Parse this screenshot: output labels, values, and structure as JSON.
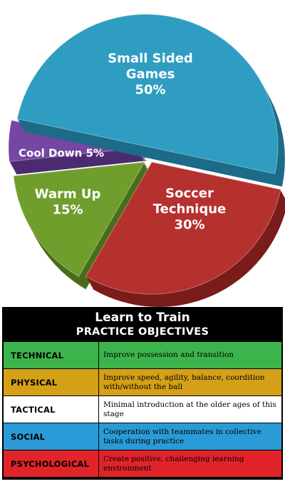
{
  "chart_data": {
    "type": "pie",
    "slices": [
      {
        "label_lines": [
          "Small Sided",
          "Games",
          "50%"
        ],
        "value": 50,
        "color": "#2f9dc1",
        "side": "#1c6b88"
      },
      {
        "label_lines": [
          "Soccer",
          "Technique",
          "30%"
        ],
        "value": 30,
        "color": "#b5312e",
        "side": "#7a1c1a"
      },
      {
        "label_lines": [
          "Warm Up",
          "15%"
        ],
        "value": 15,
        "color": "#6f9e2c",
        "side": "#496d1a"
      },
      {
        "label_lines": [
          "Cool Down 5%"
        ],
        "value": 5,
        "color": "#7447a2",
        "side": "#4c2a70"
      }
    ]
  },
  "table": {
    "title": "Learn to Train",
    "subtitle": "PRACTICE OBJECTIVES",
    "rows": [
      {
        "category": "TECHNICAL",
        "description": "Improve possession and transition",
        "bg": "#3cb44b",
        "cat_color": "#000000",
        "cat_bg": "#3cb44b"
      },
      {
        "category": "PHYSICAL",
        "description": "Improve speed, agility, balance, coordition with/without the ball",
        "bg": "#d4a017",
        "cat_color": "#000000",
        "cat_bg": "#d4a017"
      },
      {
        "category": "TACTICAL",
        "description": "Minimal introduction at the older ages of this stage",
        "bg": "#ffffff",
        "cat_color": "#000000",
        "cat_bg": "#ffffff"
      },
      {
        "category": "SOCIAL",
        "description": "Cooperation with teammates in collective tasks during practice",
        "bg": "#2a9bd6",
        "cat_color": "#000000",
        "cat_bg": "#2a9bd6"
      },
      {
        "category": "PSYCHOLOGICAL",
        "description": "Create positive, challenging learning environment",
        "bg": "#e0242a",
        "cat_color": "#000000",
        "cat_bg": "#e0242a"
      }
    ]
  }
}
